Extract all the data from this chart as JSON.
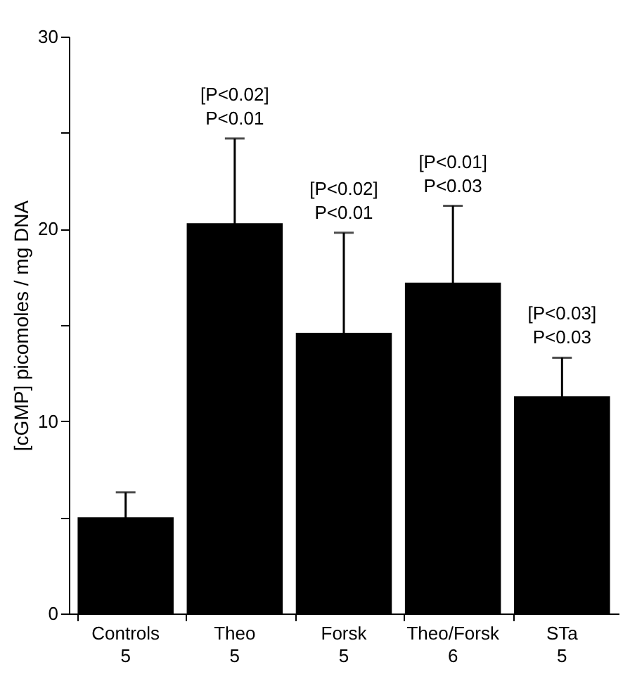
{
  "chart_data": {
    "type": "bar",
    "ylabel": "[cGMP] picomoles / mg DNA",
    "categories": [
      "Controls\n5",
      "Theo\n5",
      "Forsk\n5",
      "Theo/Forsk\n6",
      "STa\n5"
    ],
    "values": [
      5.0,
      20.3,
      14.6,
      17.2,
      11.3
    ],
    "errors": [
      1.3,
      4.4,
      5.2,
      4.0,
      2.0
    ],
    "color": "#000000",
    "ylim": [
      0,
      30
    ],
    "yticks": [
      0,
      {
        "value": 5,
        "label": null
      },
      10,
      {
        "value": 15,
        "label": null
      },
      20,
      {
        "value": 25,
        "label": null
      },
      30
    ],
    "grid": false,
    "annotations": [
      {
        "text": "[P<0.02]\nP<0.01",
        "x": "Theo\n5",
        "y": 24.7
      },
      {
        "text": "[P<0.02]\nP<0.01",
        "x": "Forsk\n5",
        "y": 19.8
      },
      {
        "text": "[P<0.01]\nP<0.03",
        "x": "Theo/Forsk\n6",
        "y": 21.2
      },
      {
        "text": "[P<0.03]\nP<0.03",
        "x": "STa\n5",
        "y": 13.3
      }
    ]
  }
}
